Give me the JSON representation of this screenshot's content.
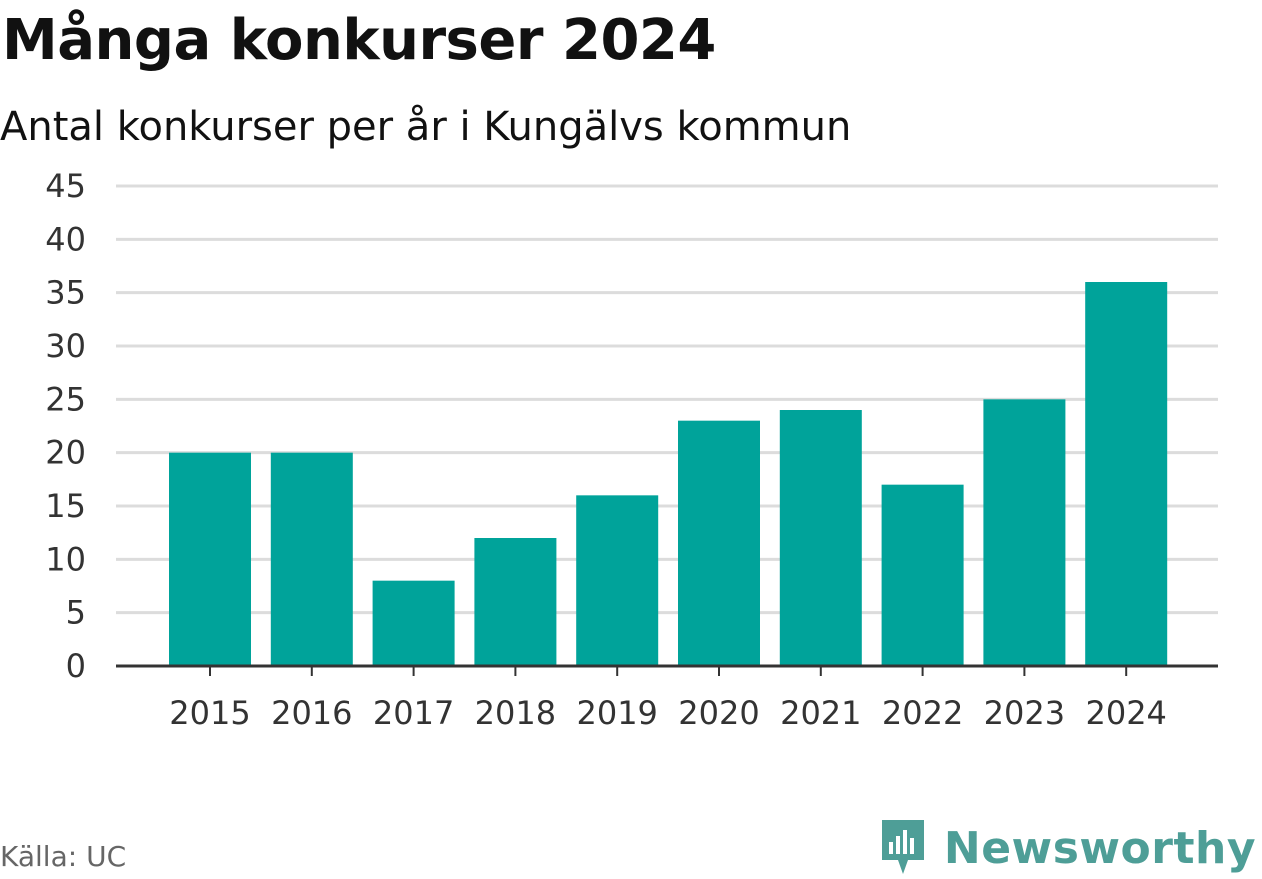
{
  "title": "Många konkurser 2024",
  "subtitle": "Antal konkurser per år i Kungälvs kommun",
  "source": "Källa: UC",
  "brand": {
    "name": "Newsworthy",
    "icon": "newsworthy-logo-icon",
    "color": "#4e9e97"
  },
  "colors": {
    "bar": "#00a39a",
    "grid": "#dcdcdc",
    "axis": "#333333"
  },
  "chart_data": {
    "type": "bar",
    "title": "Många konkurser 2024",
    "subtitle": "Antal konkurser per år i Kungälvs kommun",
    "categories": [
      "2015",
      "2016",
      "2017",
      "2018",
      "2019",
      "2020",
      "2021",
      "2022",
      "2023",
      "2024"
    ],
    "values": [
      20,
      20,
      8,
      12,
      16,
      23,
      24,
      17,
      25,
      36
    ],
    "ylim": [
      0,
      45
    ],
    "yticks": [
      0,
      5,
      10,
      15,
      20,
      25,
      30,
      35,
      40,
      45
    ],
    "grid": true,
    "legend": false
  }
}
